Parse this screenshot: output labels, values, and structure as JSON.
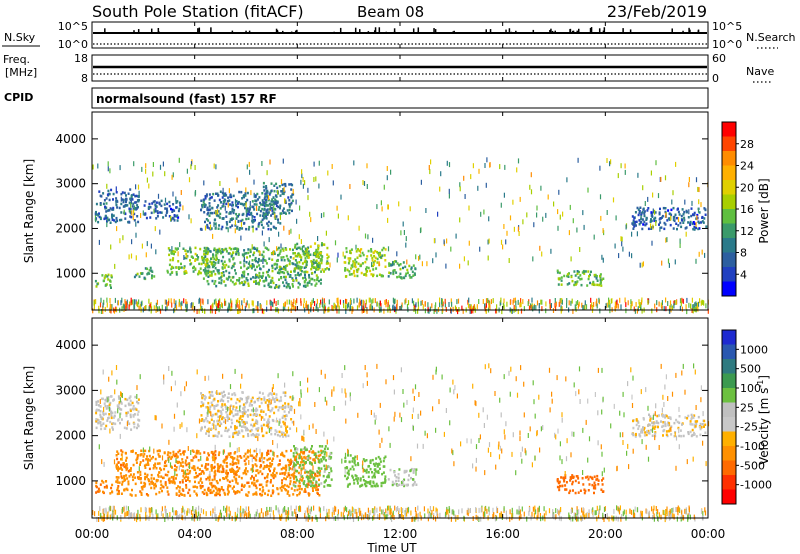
{
  "header": {
    "title": "South Pole Station (fitACF)",
    "beam": "Beam 08",
    "date": "23/Feb/2019"
  },
  "summary_panels": {
    "nsky": {
      "label": "N.Sky",
      "ticks": [
        "10^5",
        "10^0"
      ],
      "right_label": "N.Search",
      "right_ticks": [
        "10^5",
        "10^0"
      ]
    },
    "freq": {
      "label": "Freq.",
      "unit": "[MHz]",
      "ticks": [
        "18",
        "8"
      ],
      "right_label": "Nave",
      "right_ticks": [
        "60",
        "0"
      ]
    },
    "cpid": {
      "label": "CPID",
      "program": "normalsound (fast) 157 RF"
    }
  },
  "legend_power": {
    "title": "Power [dB]",
    "ticks": [
      "28",
      "24",
      "20",
      "16",
      "12",
      "8",
      "4"
    ],
    "colors": [
      "#ff0000",
      "#ff4500",
      "#ff8c00",
      "#ffb000",
      "#e0d000",
      "#a8cf00",
      "#5fbf40",
      "#3a9a6a",
      "#2a7a8a",
      "#2c5fa0",
      "#2040c0",
      "#0000ff"
    ]
  },
  "legend_velocity": {
    "title": "Velocity [m s",
    "title_sup": "-1",
    "title_end": "]",
    "ticks": [
      "1000",
      "500",
      "100",
      "25",
      "-25",
      "-100",
      "-500",
      "-1000"
    ],
    "colors": [
      "#1e2ad0",
      "#2a58b0",
      "#2f7a80",
      "#3c9a50",
      "#6cc040",
      "#c0c0c0",
      "#c8c8c8",
      "#ffb000",
      "#ff9000",
      "#ff6a00",
      "#ff3000",
      "#ff0000"
    ]
  },
  "axes": {
    "y_label": "Slant Range [km]",
    "y_ticks": [
      "1000",
      "2000",
      "3000",
      "4000"
    ],
    "x_label": "Time UT",
    "x_ticks": [
      "00:00",
      "04:00",
      "08:00",
      "12:00",
      "16:00",
      "20:00",
      "00:00"
    ]
  },
  "chart_data": [
    {
      "type": "heatmap",
      "name": "power",
      "x_range_hours": [
        0,
        24
      ],
      "y_range_km": [
        180,
        4600
      ],
      "clusters": [
        {
          "t0": 0.1,
          "t1": 1.8,
          "r0": 2150,
          "r1": 2900,
          "v": 6
        },
        {
          "t0": 2.0,
          "t1": 3.4,
          "r0": 2200,
          "r1": 2650,
          "v": 5
        },
        {
          "t0": 4.2,
          "t1": 7.3,
          "r0": 2000,
          "r1": 2850,
          "v": 7
        },
        {
          "t0": 6.6,
          "t1": 7.8,
          "r0": 2350,
          "r1": 3050,
          "v": 8
        },
        {
          "t0": 0.1,
          "t1": 0.8,
          "r0": 700,
          "r1": 1000,
          "v": 13
        },
        {
          "t0": 1.6,
          "t1": 2.4,
          "r0": 900,
          "r1": 1150,
          "v": 12
        },
        {
          "t0": 2.9,
          "t1": 4.9,
          "r0": 1000,
          "r1": 1600,
          "v": 14
        },
        {
          "t0": 4.3,
          "t1": 8.9,
          "r0": 700,
          "r1": 1600,
          "v": 12
        },
        {
          "t0": 7.8,
          "t1": 9.2,
          "r0": 1050,
          "r1": 1700,
          "v": 15
        },
        {
          "t0": 9.8,
          "t1": 11.4,
          "r0": 950,
          "r1": 1600,
          "v": 16
        },
        {
          "t0": 11.5,
          "t1": 12.6,
          "r0": 900,
          "r1": 1300,
          "v": 12
        },
        {
          "t0": 18.1,
          "t1": 19.9,
          "r0": 750,
          "r1": 1100,
          "v": 13
        },
        {
          "t0": 21.0,
          "t1": 23.9,
          "r0": 2000,
          "r1": 2500,
          "v": 5
        }
      ]
    },
    {
      "type": "heatmap",
      "name": "velocity",
      "x_range_hours": [
        0,
        24
      ],
      "y_range_km": [
        180,
        4600
      ],
      "clusters": [
        {
          "t0": 0.1,
          "t1": 1.8,
          "r0": 2150,
          "r1": 2900,
          "v": 25
        },
        {
          "t0": 4.2,
          "t1": 7.8,
          "r0": 2000,
          "r1": 3000,
          "v": 0
        },
        {
          "t0": 0.1,
          "t1": 0.8,
          "r0": 750,
          "r1": 1050,
          "v": -300
        },
        {
          "t0": 0.9,
          "t1": 8.9,
          "r0": 700,
          "r1": 1700,
          "v": -250
        },
        {
          "t0": 7.8,
          "t1": 9.3,
          "r0": 900,
          "r1": 1800,
          "v": 150
        },
        {
          "t0": 9.8,
          "t1": 11.4,
          "r0": 900,
          "r1": 1600,
          "v": 200
        },
        {
          "t0": 11.5,
          "t1": 12.6,
          "r0": 900,
          "r1": 1300,
          "v": 80
        },
        {
          "t0": 18.1,
          "t1": 19.9,
          "r0": 750,
          "r1": 1150,
          "v": -400
        },
        {
          "t0": 21.0,
          "t1": 23.9,
          "r0": 2000,
          "r1": 2500,
          "v": 0
        }
      ]
    }
  ]
}
